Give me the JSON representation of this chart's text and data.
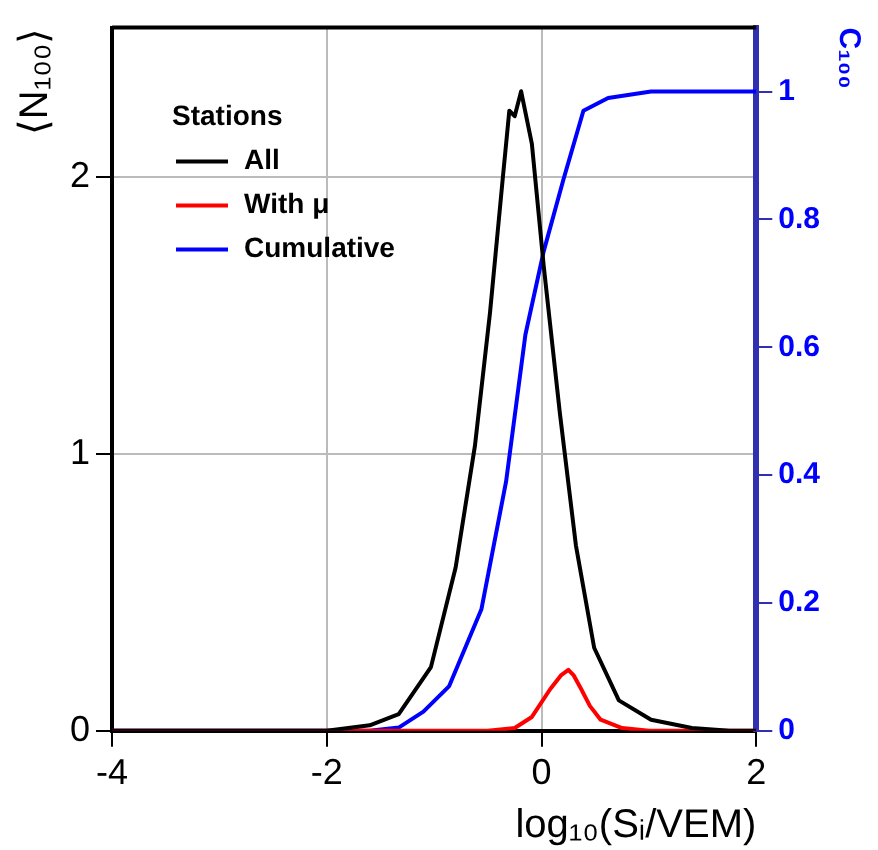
{
  "chart_data": {
    "type": "line",
    "xlabel": "log₁₀(Sᵢ/VEM)",
    "ylabel": "⟨N₁₀₀⟩",
    "y2label": "C₁₀₀",
    "legend_title": "Stations",
    "xlim": [
      -4,
      2
    ],
    "xticks": [
      -4,
      -2,
      0,
      2
    ],
    "ylim": [
      0,
      2.54
    ],
    "yticks": [
      0,
      1,
      2
    ],
    "y2lim": [
      0,
      1.1
    ],
    "y2ticks": [
      0,
      0.2,
      0.4,
      0.6,
      0.8,
      1
    ],
    "grid": true,
    "legend": "top left",
    "marker": "none",
    "line_style": "solid",
    "series": [
      {
        "name": "All",
        "color": "#000000",
        "x": [
          -4,
          -2,
          -1.6,
          -1.33,
          -1.03,
          -0.8,
          -0.62,
          -0.48,
          -0.36,
          -0.3,
          -0.25,
          -0.19,
          -0.09,
          0.02,
          0.17,
          0.32,
          0.49,
          0.72,
          1.02,
          1.4,
          1.75,
          2
        ],
        "values": [
          0,
          0,
          0.02,
          0.06,
          0.23,
          0.59,
          1.03,
          1.51,
          2.0,
          2.24,
          2.22,
          2.31,
          2.12,
          1.68,
          1.15,
          0.67,
          0.3,
          0.11,
          0.04,
          0.01,
          0,
          0
        ]
      },
      {
        "name": "With μ",
        "color": "#ff0000",
        "x": [
          -4,
          -0.5,
          -0.25,
          -0.09,
          0.08,
          0.18,
          0.25,
          0.3,
          0.37,
          0.45,
          0.55,
          0.75,
          1.0,
          2
        ],
        "values": [
          0,
          0,
          0.01,
          0.05,
          0.15,
          0.2,
          0.22,
          0.2,
          0.15,
          0.09,
          0.04,
          0.01,
          0,
          0
        ]
      },
      {
        "name": "Cumulative",
        "color": "#0000ff",
        "axis": "y2",
        "x": [
          -4,
          -1.6,
          -1.33,
          -1.1,
          -0.86,
          -0.56,
          -0.33,
          -0.15,
          0.02,
          0.2,
          0.39,
          0.62,
          1.02,
          2
        ],
        "values": [
          0,
          0,
          0.005,
          0.03,
          0.07,
          0.19,
          0.39,
          0.62,
          0.75,
          0.86,
          0.97,
          0.99,
          1.0,
          1.0
        ]
      }
    ]
  }
}
